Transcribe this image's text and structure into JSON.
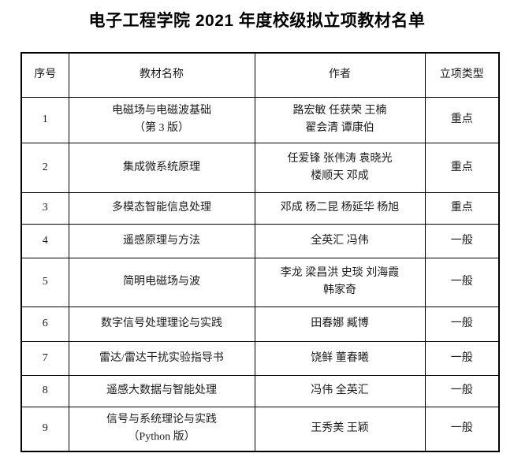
{
  "title": "电子工程学院 2021 年度校级拟立项教材名单",
  "table": {
    "columns": [
      "序号",
      "教材名称",
      "作者",
      "立项类型"
    ],
    "rows": [
      {
        "no": "1",
        "name": "电磁场与电磁波基础\n（第 3 版）",
        "authors": "路宏敏 任获荣 王楠\n翟会清 谭康伯",
        "type": "重点"
      },
      {
        "no": "2",
        "name": "集成微系统原理",
        "authors": "任爱锋 张伟涛 袁晓光\n楼顺天 邓成",
        "type": "重点"
      },
      {
        "no": "3",
        "name": "多模态智能信息处理",
        "authors": "邓成 杨二昆 杨延华 杨旭",
        "type": "重点"
      },
      {
        "no": "4",
        "name": "遥感原理与方法",
        "authors": "全英汇 冯伟",
        "type": "一般"
      },
      {
        "no": "5",
        "name": "简明电磁场与波",
        "authors": "李龙 梁昌洪 史琰 刘海霞\n韩家奇",
        "type": "一般"
      },
      {
        "no": "6",
        "name": "数字信号处理理论与实践",
        "authors": "田春娜 臧博",
        "type": "一般"
      },
      {
        "no": "7",
        "name": "雷达/雷达干扰实验指导书",
        "authors": "饶鲜 董春曦",
        "type": "一般"
      },
      {
        "no": "8",
        "name": "遥感大数据与智能处理",
        "authors": "冯伟 全英汇",
        "type": "一般"
      },
      {
        "no": "9",
        "name": "信号与系统理论与实践\n（Python 版）",
        "authors": "王秀美 王颖",
        "type": "一般"
      }
    ]
  },
  "colors": {
    "background": "#ffffff",
    "border": "#000000",
    "text": "#1a1a1a",
    "title_text": "#000000"
  }
}
